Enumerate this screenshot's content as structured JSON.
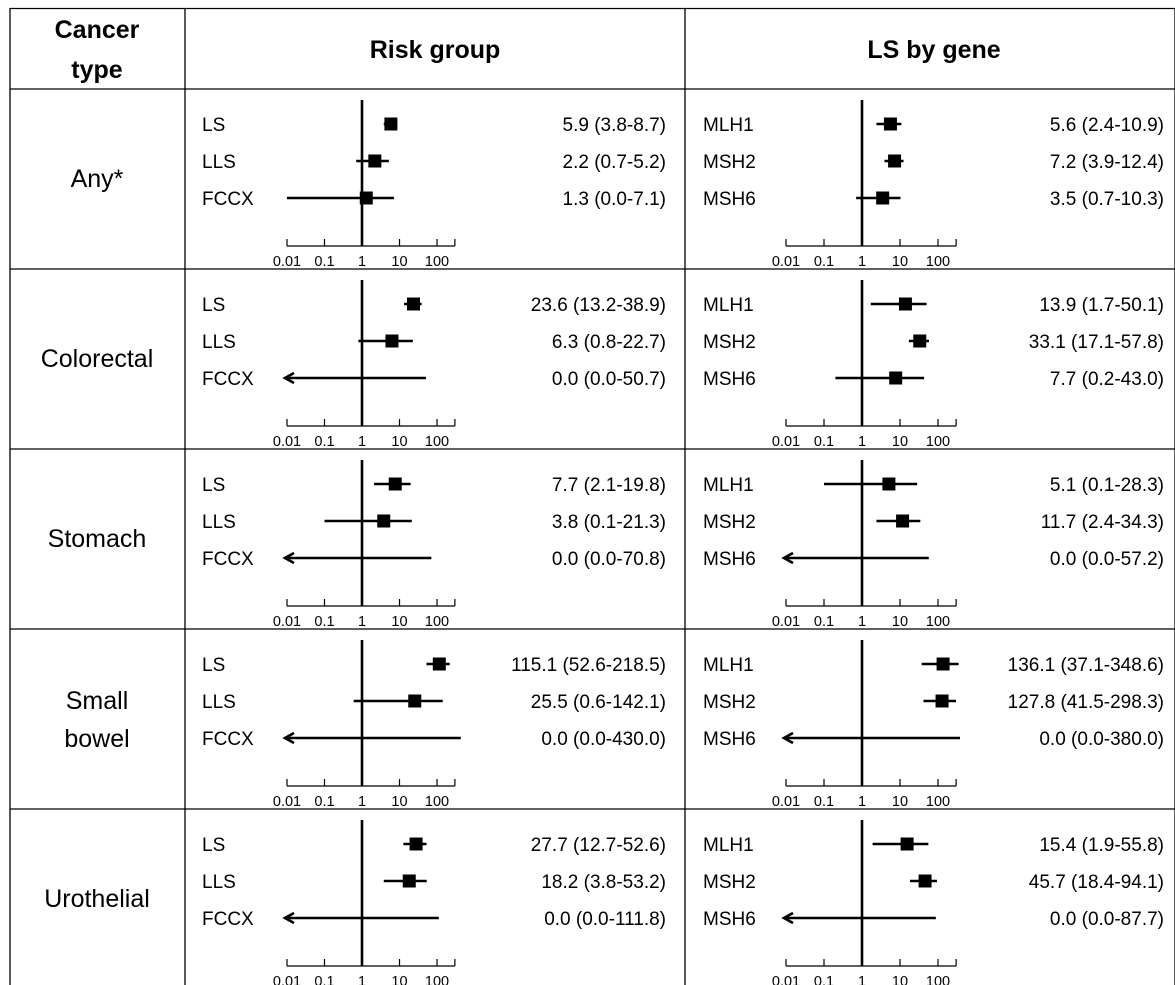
{
  "table": {
    "headers": {
      "cancer_type": [
        "Cancer",
        "type"
      ],
      "risk_group": "Risk group",
      "ls_by_gene": "LS by gene"
    }
  },
  "axis_tick_labels": [
    "0.01",
    "0.1",
    "1",
    "10",
    "100"
  ],
  "chart_data": {
    "type": "forest",
    "scale": "log",
    "reference_line": 1,
    "panels": [
      {
        "cancer_type": [
          "Any*"
        ],
        "risk_group": [
          {
            "label": "LS",
            "est": 5.9,
            "lo": 3.8,
            "hi": 8.7,
            "text": "5.9 (3.8-8.7)"
          },
          {
            "label": "LLS",
            "est": 2.2,
            "lo": 0.7,
            "hi": 5.2,
            "text": "2.2 (0.7-5.2)"
          },
          {
            "label": "FCCX",
            "est": 1.3,
            "lo": 0.0,
            "hi": 7.1,
            "text": "1.3 (0.0-7.1)"
          }
        ],
        "ls_by_gene": [
          {
            "label": "MLH1",
            "est": 5.6,
            "lo": 2.4,
            "hi": 10.9,
            "text": "5.6 (2.4-10.9)"
          },
          {
            "label": "MSH2",
            "est": 7.2,
            "lo": 3.9,
            "hi": 12.4,
            "text": "7.2 (3.9-12.4)"
          },
          {
            "label": "MSH6",
            "est": 3.5,
            "lo": 0.7,
            "hi": 10.3,
            "text": "3.5 (0.7-10.3)"
          }
        ]
      },
      {
        "cancer_type": [
          "Colorectal"
        ],
        "risk_group": [
          {
            "label": "LS",
            "est": 23.6,
            "lo": 13.2,
            "hi": 38.9,
            "text": "23.6 (13.2-38.9)"
          },
          {
            "label": "LLS",
            "est": 6.3,
            "lo": 0.8,
            "hi": 22.7,
            "text": "6.3 (0.8-22.7)"
          },
          {
            "label": "FCCX",
            "est": 0.0,
            "lo": 0.0,
            "hi": 50.7,
            "text": "0.0 (0.0-50.7)"
          }
        ],
        "ls_by_gene": [
          {
            "label": "MLH1",
            "est": 13.9,
            "lo": 1.7,
            "hi": 50.1,
            "text": "13.9 (1.7-50.1)"
          },
          {
            "label": "MSH2",
            "est": 33.1,
            "lo": 17.1,
            "hi": 57.8,
            "text": "33.1 (17.1-57.8)"
          },
          {
            "label": "MSH6",
            "est": 7.7,
            "lo": 0.2,
            "hi": 43.0,
            "text": "7.7 (0.2-43.0)"
          }
        ]
      },
      {
        "cancer_type": [
          "Stomach"
        ],
        "risk_group": [
          {
            "label": "LS",
            "est": 7.7,
            "lo": 2.1,
            "hi": 19.8,
            "text": "7.7 (2.1-19.8)"
          },
          {
            "label": "LLS",
            "est": 3.8,
            "lo": 0.1,
            "hi": 21.3,
            "text": "3.8 (0.1-21.3)"
          },
          {
            "label": "FCCX",
            "est": 0.0,
            "lo": 0.0,
            "hi": 70.8,
            "text": "0.0 (0.0-70.8)"
          }
        ],
        "ls_by_gene": [
          {
            "label": "MLH1",
            "est": 5.1,
            "lo": 0.1,
            "hi": 28.3,
            "text": "5.1 (0.1-28.3)"
          },
          {
            "label": "MSH2",
            "est": 11.7,
            "lo": 2.4,
            "hi": 34.3,
            "text": "11.7 (2.4-34.3)"
          },
          {
            "label": "MSH6",
            "est": 0.0,
            "lo": 0.0,
            "hi": 57.2,
            "text": "0.0 (0.0-57.2)"
          }
        ]
      },
      {
        "cancer_type": [
          "Small",
          "bowel"
        ],
        "risk_group": [
          {
            "label": "LS",
            "est": 115.1,
            "lo": 52.6,
            "hi": 218.5,
            "text": "115.1 (52.6-218.5)"
          },
          {
            "label": "LLS",
            "est": 25.5,
            "lo": 0.6,
            "hi": 142.1,
            "text": "25.5 (0.6-142.1)"
          },
          {
            "label": "FCCX",
            "est": 0.0,
            "lo": 0.0,
            "hi": 430.0,
            "text": "0.0 (0.0-430.0)"
          }
        ],
        "ls_by_gene": [
          {
            "label": "MLH1",
            "est": 136.1,
            "lo": 37.1,
            "hi": 348.6,
            "text": "136.1 (37.1-348.6)"
          },
          {
            "label": "MSH2",
            "est": 127.8,
            "lo": 41.5,
            "hi": 298.3,
            "text": "127.8 (41.5-298.3)"
          },
          {
            "label": "MSH6",
            "est": 0.0,
            "lo": 0.0,
            "hi": 380.0,
            "text": "0.0 (0.0-380.0)"
          }
        ]
      },
      {
        "cancer_type": [
          "Urothelial"
        ],
        "risk_group": [
          {
            "label": "LS",
            "est": 27.7,
            "lo": 12.7,
            "hi": 52.6,
            "text": "27.7 (12.7-52.6)"
          },
          {
            "label": "LLS",
            "est": 18.2,
            "lo": 3.8,
            "hi": 53.2,
            "text": "18.2 (3.8-53.2)"
          },
          {
            "label": "FCCX",
            "est": 0.0,
            "lo": 0.0,
            "hi": 111.8,
            "text": "0.0 (0.0-111.8)"
          }
        ],
        "ls_by_gene": [
          {
            "label": "MLH1",
            "est": 15.4,
            "lo": 1.9,
            "hi": 55.8,
            "text": "15.4 (1.9-55.8)"
          },
          {
            "label": "MSH2",
            "est": 45.7,
            "lo": 18.4,
            "hi": 94.1,
            "text": "45.7 (18.4-94.1)"
          },
          {
            "label": "MSH6",
            "est": 0.0,
            "lo": 0.0,
            "hi": 87.7,
            "text": "0.0 (0.0-87.7)"
          }
        ]
      }
    ]
  }
}
